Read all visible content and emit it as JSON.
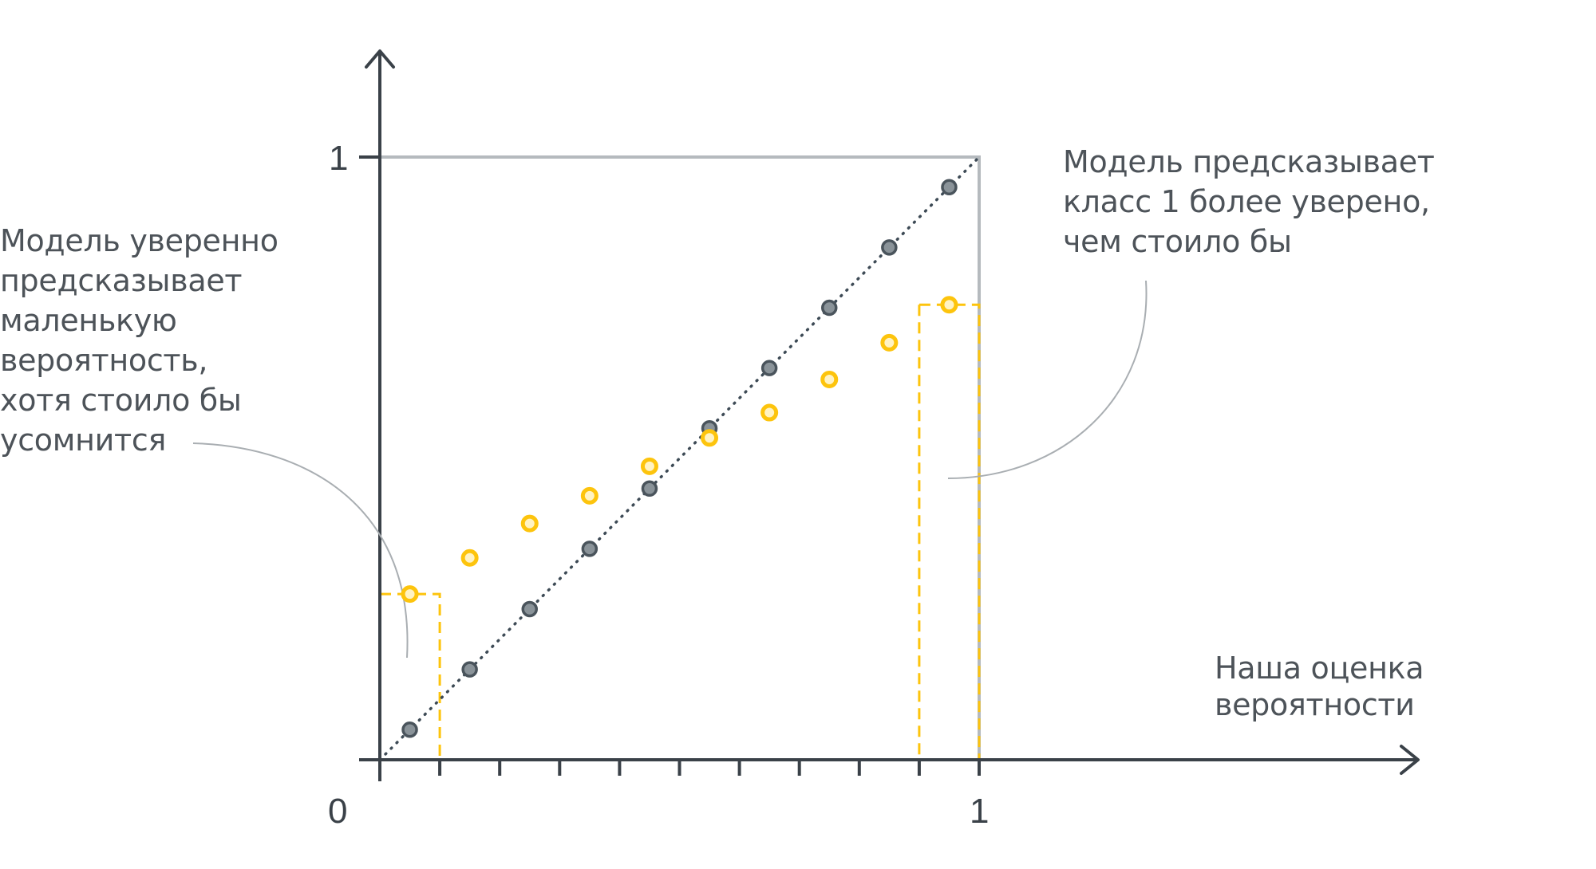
{
  "chart_data": {
    "type": "scatter",
    "title": "",
    "xlabel": "Наша оценка\nвероятности",
    "ylabel": "",
    "xlim": [
      0,
      1
    ],
    "ylim": [
      0,
      1
    ],
    "x_tick_labels": [
      "0",
      "1"
    ],
    "y_tick_labels": [
      "1"
    ],
    "x_tick_count": 10,
    "grid": false,
    "reference_line": {
      "x": [
        0,
        1
      ],
      "y": [
        0,
        1
      ],
      "style": "dotted",
      "color": "#3d4a55"
    },
    "series": [
      {
        "color": "#8a9399",
        "x": [
          0.05,
          0.15,
          0.25,
          0.35,
          0.45,
          0.55,
          0.65,
          0.75,
          0.85,
          0.95
        ],
        "y": [
          0.05,
          0.15,
          0.25,
          0.35,
          0.45,
          0.55,
          0.65,
          0.75,
          0.85,
          0.95
        ]
      },
      {
        "color": "#fdc40d",
        "x": [
          0.05,
          0.15,
          0.25,
          0.35,
          0.45,
          0.55,
          0.65,
          0.75,
          0.85,
          0.95
        ],
        "y": [
          0.275,
          0.335,
          0.392,
          0.438,
          0.487,
          0.534,
          0.576,
          0.631,
          0.692,
          0.755
        ]
      }
    ],
    "dashed_bins": [
      {
        "x": [
          0.0,
          0.1
        ],
        "y": 0.275,
        "color": "#fdc40d"
      },
      {
        "x": [
          0.9,
          1.0
        ],
        "y": 0.755,
        "color": "#fdc40d"
      }
    ],
    "unit_square_color": "#b5babe",
    "annotations": [
      "Модель уверенно\nпредсказывает\nмаленькую\nвероятность,\nхотя стоило бы\nусомнится",
      "Модель предсказывает\nкласс 1 более уверено,\nчем стоило бы"
    ]
  }
}
